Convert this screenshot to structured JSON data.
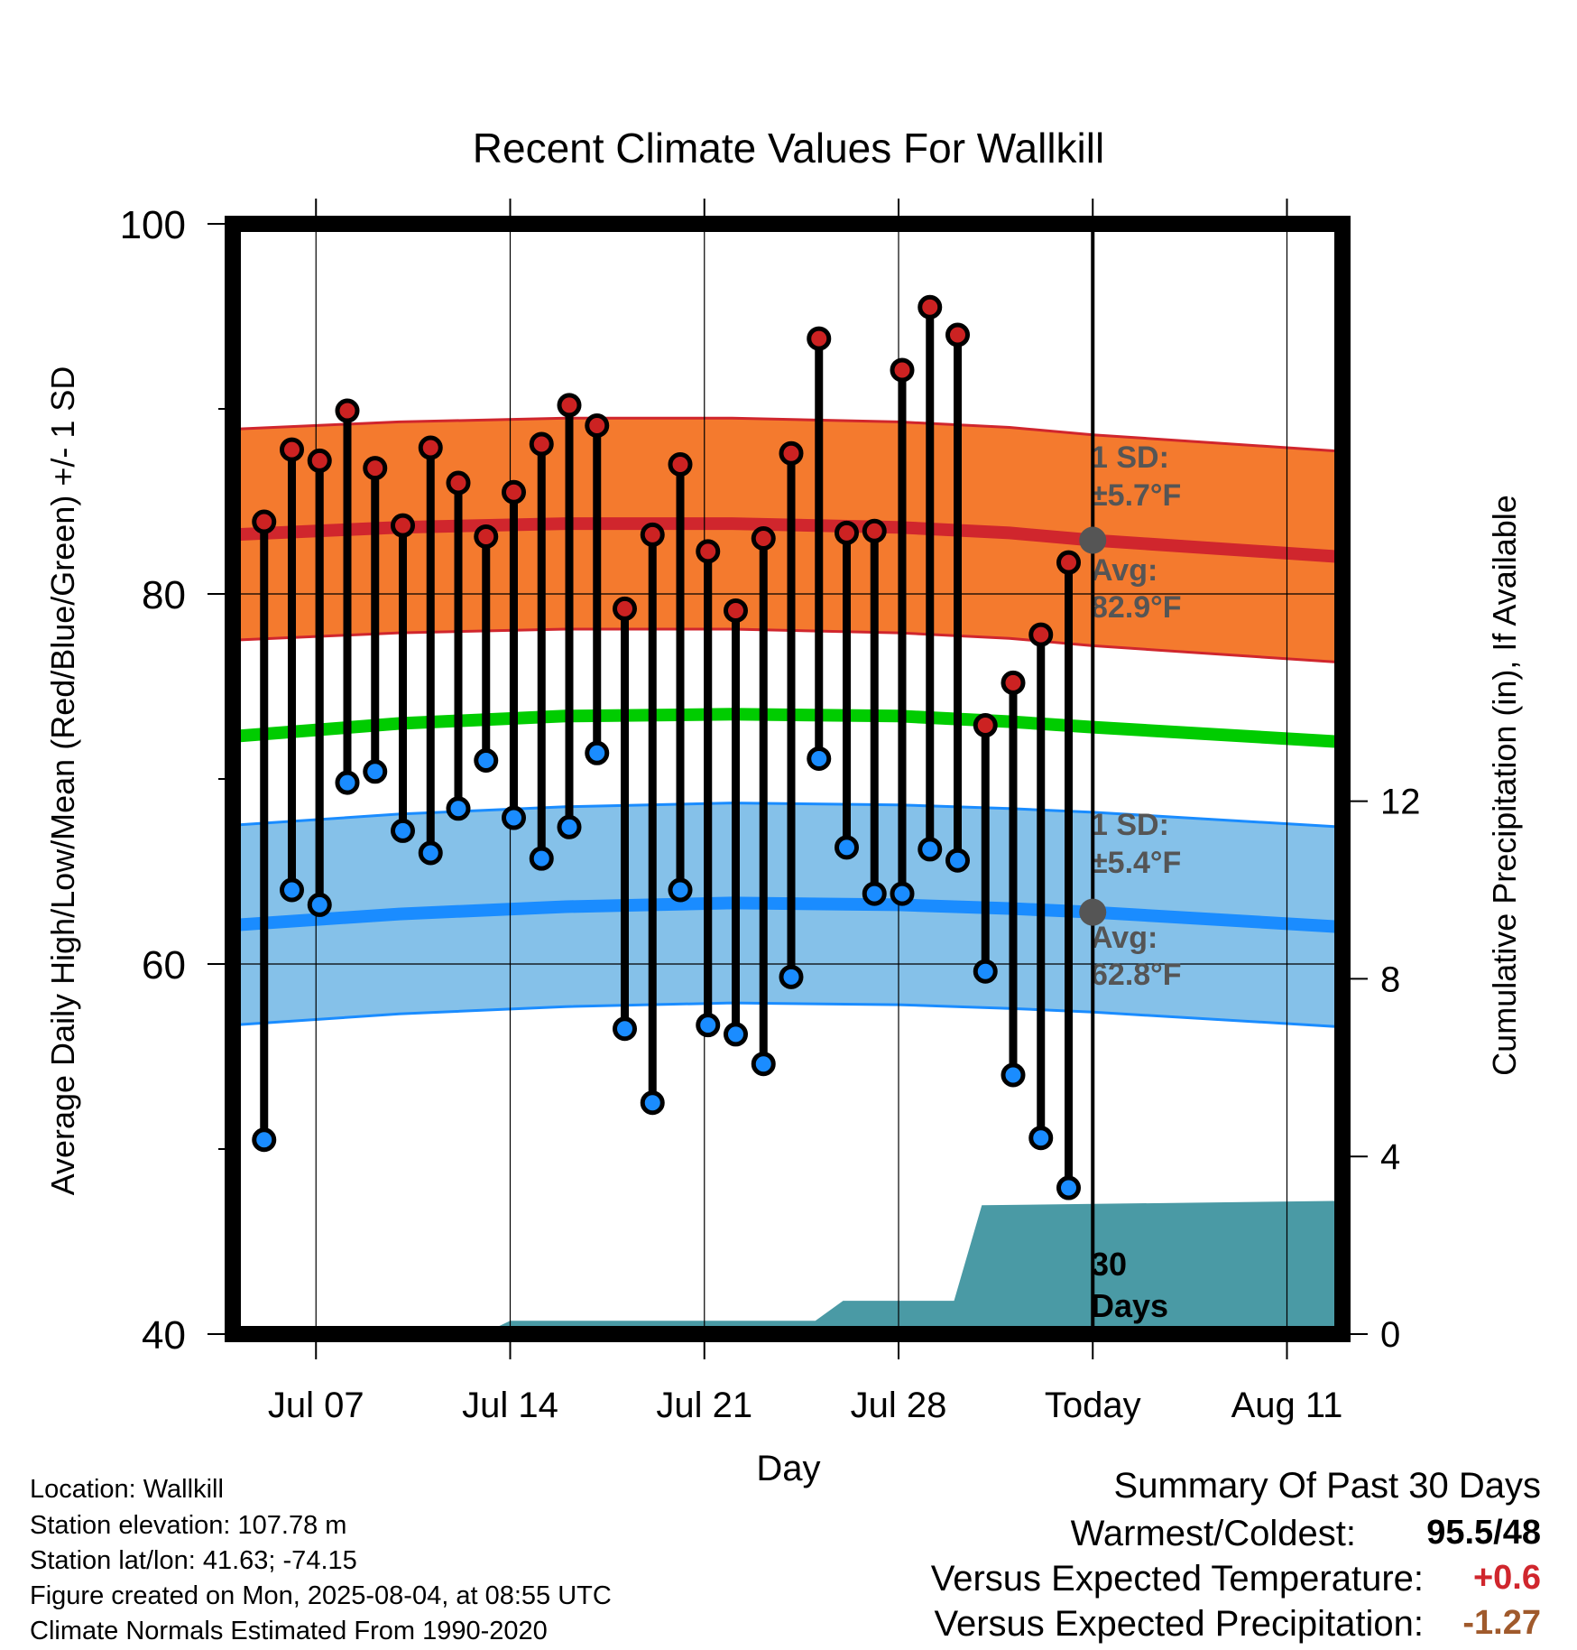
{
  "chart_data": {
    "type": "line",
    "title": "Recent Climate Values For Wallkill",
    "xlabel": "Day",
    "ylabel": "Average Daily High/Low/Mean (Red/Blue/Green) +/- 1 SD",
    "y2label": "Cumulative Precipitation (in), If Available",
    "ylim": [
      40,
      100
    ],
    "y2lim": [
      0,
      25
    ],
    "yticks": [
      "100",
      "80",
      "60",
      "40"
    ],
    "y2ticks": [
      "12",
      "8",
      "4",
      "0"
    ],
    "xticks": [
      "Jul 07",
      "Jul 14",
      "Jul 21",
      "Jul 28",
      "Today",
      "Aug 11"
    ],
    "x_range_days": [
      "2025-07-04",
      "2025-08-13"
    ],
    "today": "2025-08-04",
    "days": [
      "2025-07-05",
      "2025-07-06",
      "2025-07-07",
      "2025-07-08",
      "2025-07-09",
      "2025-07-10",
      "2025-07-11",
      "2025-07-12",
      "2025-07-13",
      "2025-07-14",
      "2025-07-15",
      "2025-07-16",
      "2025-07-17",
      "2025-07-18",
      "2025-07-19",
      "2025-07-20",
      "2025-07-21",
      "2025-07-22",
      "2025-07-23",
      "2025-07-24",
      "2025-07-25",
      "2025-07-26",
      "2025-07-27",
      "2025-07-28",
      "2025-07-29",
      "2025-07-30",
      "2025-07-31",
      "2025-08-01",
      "2025-08-02",
      "2025-08-03"
    ],
    "series": [
      {
        "name": "High",
        "color": "#cc2222",
        "values": [
          83.9,
          87.8,
          87.2,
          89.9,
          86.8,
          83.7,
          87.9,
          86.0,
          83.1,
          85.5,
          88.1,
          90.2,
          89.1,
          79.2,
          83.2,
          87.0,
          82.3,
          79.1,
          83.0,
          87.6,
          93.8,
          83.3,
          83.4,
          92.1,
          95.5,
          94.0,
          72.9,
          75.2,
          77.8,
          81.7
        ]
      },
      {
        "name": "Low",
        "color": "#1a8cff",
        "values": [
          50.5,
          64.0,
          63.2,
          69.8,
          70.4,
          67.2,
          66.0,
          68.4,
          71.0,
          67.9,
          65.7,
          67.4,
          71.4,
          56.5,
          52.5,
          64.0,
          56.7,
          56.2,
          54.6,
          59.3,
          71.1,
          66.3,
          63.8,
          63.8,
          66.2,
          65.6,
          59.6,
          54.0,
          50.6,
          47.9
        ]
      }
    ],
    "normals": {
      "high_avg": [
        83.2,
        83.6,
        83.8,
        83.8,
        83.6,
        83.3,
        82.9,
        82.0
      ],
      "high_sd": 5.7,
      "low_avg": [
        62.1,
        62.7,
        63.1,
        63.3,
        63.2,
        63.0,
        62.8,
        62.0
      ],
      "low_sd": 5.4,
      "mean_avg": [
        72.3,
        73.0,
        73.4,
        73.5,
        73.4,
        73.1,
        72.8,
        72.0
      ],
      "band_days": [
        "2025-07-04",
        "2025-07-10",
        "2025-07-16",
        "2025-07-22",
        "2025-07-28",
        "2025-08-01",
        "2025-08-04",
        "2025-08-13"
      ]
    },
    "precipitation": {
      "color": "#4a9aa5",
      "days": [
        "2025-07-04",
        "2025-07-13",
        "2025-07-14",
        "2025-07-25",
        "2025-07-26",
        "2025-07-30",
        "2025-07-31",
        "2025-08-13"
      ],
      "values": [
        0,
        0,
        0.3,
        0.3,
        0.75,
        0.75,
        2.9,
        3.0
      ]
    },
    "annotations": {
      "high_sd_line1": "1 SD:",
      "high_sd_line2": "±5.7°F",
      "high_avg_line1": "Avg:",
      "high_avg_line2": "82.9°F",
      "low_sd_line1": "1 SD:",
      "low_sd_line2": "±5.4°F",
      "low_avg_line1": "Avg:",
      "low_avg_line2": "62.8°F",
      "window_line1": "30",
      "window_line2": "Days"
    },
    "high_avg_today": 82.9,
    "low_avg_today": 62.8
  },
  "info": {
    "location": "Location: Wallkill",
    "elevation": "Station elevation: 107.78 m",
    "latlon": "Station lat/lon: 41.63; -74.15",
    "created": "Figure created on Mon, 2025-08-04, at 08:55 UTC",
    "normals": "Climate Normals Estimated From 1990-2020"
  },
  "summary": {
    "heading": "Summary Of Past 30 Days",
    "warm_cold_label": "Warmest/Coldest:",
    "warm_cold_value": "95.5/48",
    "temp_label": "Versus Expected Temperature:",
    "temp_value": "+0.6",
    "temp_color": "#d0262d",
    "precip_label": "Versus Expected Precipitation:",
    "precip_value": "-1.27",
    "precip_color": "#a05a2c"
  }
}
